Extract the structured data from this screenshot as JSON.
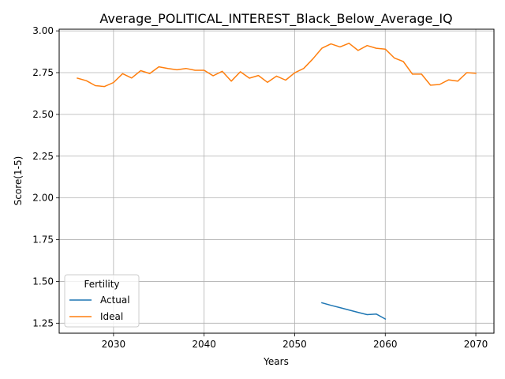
{
  "chart_data": {
    "type": "line",
    "title": "Average_POLITICAL_INTEREST_Black_Below_Average_IQ",
    "xlabel": "Years",
    "ylabel": "Score(1-5)",
    "xlim": [
      2024,
      2072
    ],
    "ylim": [
      1.19,
      3.01
    ],
    "xticks": [
      2030,
      2040,
      2050,
      2060,
      2070
    ],
    "yticks": [
      1.25,
      1.5,
      1.75,
      2.0,
      2.25,
      2.5,
      2.75,
      3.0
    ],
    "ytick_labels": [
      "1.25",
      "1.50",
      "1.75",
      "2.00",
      "2.25",
      "2.50",
      "2.75",
      "3.00"
    ],
    "grid": true,
    "legend": {
      "title": "Fertility",
      "position": "lower-left"
    },
    "series": [
      {
        "name": "Actual",
        "color": "#1f77b4",
        "x": [
          2053,
          2054,
          2055,
          2056,
          2057,
          2058,
          2059,
          2060
        ],
        "y": [
          1.372,
          1.357,
          1.343,
          1.329,
          1.315,
          1.301,
          1.305,
          1.275
        ]
      },
      {
        "name": "Ideal",
        "color": "#ff7f0e",
        "x": [
          2026,
          2027,
          2028,
          2029,
          2030,
          2031,
          2032,
          2033,
          2034,
          2035,
          2036,
          2037,
          2038,
          2039,
          2040,
          2041,
          2042,
          2043,
          2044,
          2045,
          2046,
          2047,
          2048,
          2049,
          2050,
          2051,
          2052,
          2053,
          2054,
          2055,
          2056,
          2057,
          2058,
          2059,
          2060,
          2061,
          2062,
          2063,
          2064,
          2065,
          2066,
          2067,
          2068,
          2069,
          2070
        ],
        "y": [
          2.717,
          2.702,
          2.672,
          2.667,
          2.691,
          2.744,
          2.718,
          2.762,
          2.745,
          2.785,
          2.775,
          2.767,
          2.775,
          2.764,
          2.764,
          2.731,
          2.758,
          2.699,
          2.755,
          2.717,
          2.733,
          2.692,
          2.729,
          2.705,
          2.749,
          2.775,
          2.832,
          2.896,
          2.922,
          2.904,
          2.926,
          2.883,
          2.912,
          2.896,
          2.891,
          2.838,
          2.816,
          2.741,
          2.741,
          2.675,
          2.679,
          2.707,
          2.699,
          2.75,
          2.746
        ]
      }
    ]
  }
}
